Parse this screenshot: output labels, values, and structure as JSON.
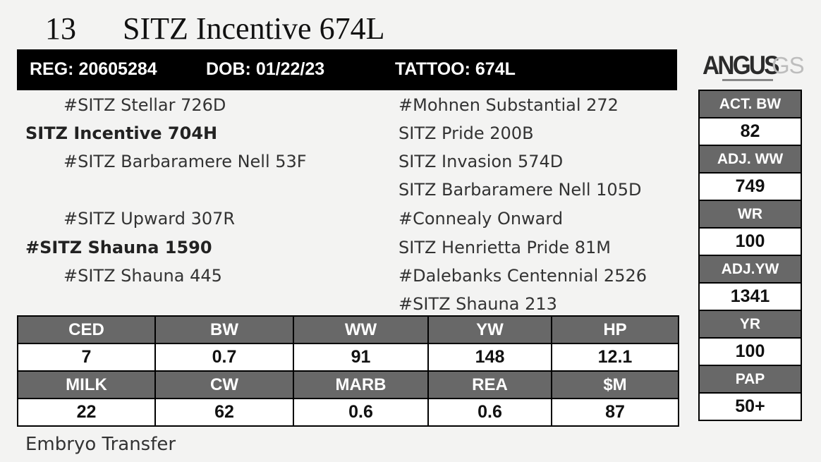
{
  "lot": {
    "number": "13",
    "name": "SITZ Incentive 674L"
  },
  "reg_bar": {
    "reg": "REG: 20605284",
    "dob": "DOB: 01/22/23",
    "tattoo": "TATTOO: 674L"
  },
  "logo": {
    "main": "ANGUS",
    "suffix": "GS",
    "icon": "angus-gs-logo-icon"
  },
  "pedigree": {
    "sire_sire": "#SITZ Stellar 726D",
    "sire": "SITZ Incentive 704H",
    "sire_dam": "#SITZ Barbaramere Nell 53F",
    "dam_sire": "#SITZ Upward 307R",
    "dam": "#SITZ Shauna 1590",
    "dam_dam": "#SITZ Shauna 445",
    "right": [
      "#Mohnen Substantial 272",
      "SITZ Pride 200B",
      "SITZ Invasion 574D",
      "SITZ Barbaramere Nell 105D",
      "#Connealy Onward",
      "SITZ Henrietta Pride 81M",
      "#Dalebanks Centennial 2526",
      "#SITZ Shauna 213"
    ]
  },
  "epds": {
    "row1": {
      "headers": [
        "CED",
        "BW",
        "WW",
        "YW",
        "HP"
      ],
      "values": [
        "7",
        "0.7",
        "91",
        "148",
        "12.1"
      ]
    },
    "row2": {
      "headers": [
        "MILK",
        "CW",
        "MARB",
        "REA",
        "$M"
      ],
      "values": [
        "22",
        "62",
        "0.6",
        "0.6",
        "87"
      ]
    }
  },
  "side_stats": [
    {
      "label": "ACT. BW",
      "value": "82"
    },
    {
      "label": "ADJ. WW",
      "value": "749"
    },
    {
      "label": "WR",
      "value": "100"
    },
    {
      "label": "ADJ.YW",
      "value": "1341"
    },
    {
      "label": "YR",
      "value": "100"
    },
    {
      "label": "PAP",
      "value": "50+"
    }
  ],
  "note": "Embryo Transfer"
}
